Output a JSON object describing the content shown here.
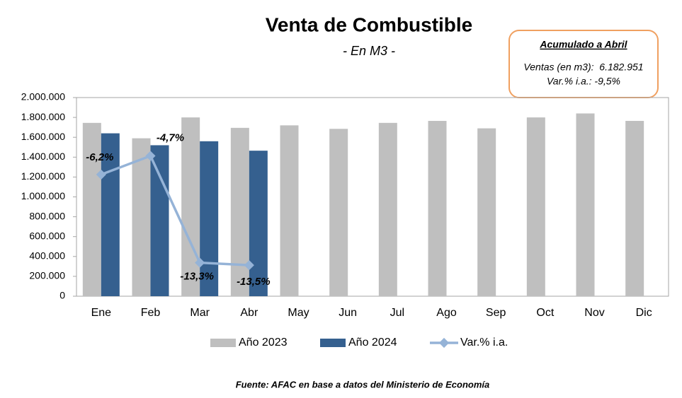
{
  "chart_data": {
    "type": "bar",
    "title": "Venta de Combustible",
    "subtitle": "- En M3 -",
    "categories": [
      "Ene",
      "Feb",
      "Mar",
      "Abr",
      "May",
      "Jun",
      "Jul",
      "Ago",
      "Sep",
      "Oct",
      "Nov",
      "Dic"
    ],
    "series": [
      {
        "name": "Año 2023",
        "color": "#bfbfbf",
        "values": [
          1745000,
          1590000,
          1800000,
          1695000,
          1720000,
          1685000,
          1745000,
          1765000,
          1690000,
          1800000,
          1840000,
          1765000
        ]
      },
      {
        "name": "Año 2024",
        "color": "#35608f",
        "values": [
          1640000,
          1520000,
          1560000,
          1465000,
          null,
          null,
          null,
          null,
          null,
          null,
          null,
          null
        ]
      },
      {
        "name": "Var.% i.a.",
        "color": "#95b3d7",
        "type": "line",
        "axis": "y2",
        "values": [
          -6.2,
          -4.7,
          -13.3,
          -13.5,
          null,
          null,
          null,
          null,
          null,
          null,
          null,
          null
        ],
        "value_labels": [
          "-6,2%",
          "-4,7%",
          "-13,3%",
          "-13,5%",
          null,
          null,
          null,
          null,
          null,
          null,
          null,
          null
        ]
      }
    ],
    "ylim": [
      0,
      2000000
    ],
    "yticks": [
      0,
      {
        "value": 200000,
        "label": "200.000"
      },
      {
        "value": 400000,
        "label": "400.000"
      },
      {
        "value": 600000,
        "label": "600.000"
      },
      {
        "value": 800000,
        "label": "800.000"
      },
      {
        "value": 1000000,
        "label": "1.000.000"
      },
      {
        "value": 1200000,
        "label": "1.200.000"
      },
      {
        "value": 1400000,
        "label": "1.400.000"
      },
      {
        "value": 1600000,
        "label": "1.600.000"
      },
      {
        "value": 1800000,
        "label": "1.800.000"
      },
      {
        "value": 2000000,
        "label": "2.000.000"
      }
    ],
    "y2lim": [
      -16,
      0
    ],
    "legend": "bottom",
    "annotations": {
      "heading": "Acumulado a Abril",
      "lines": [
        "Ventas (en m3):  6.182.951",
        "Var.% i.a.: -9,5%"
      ]
    },
    "source": "Fuente: AFAC en base a datos del Ministerio de Economía"
  }
}
